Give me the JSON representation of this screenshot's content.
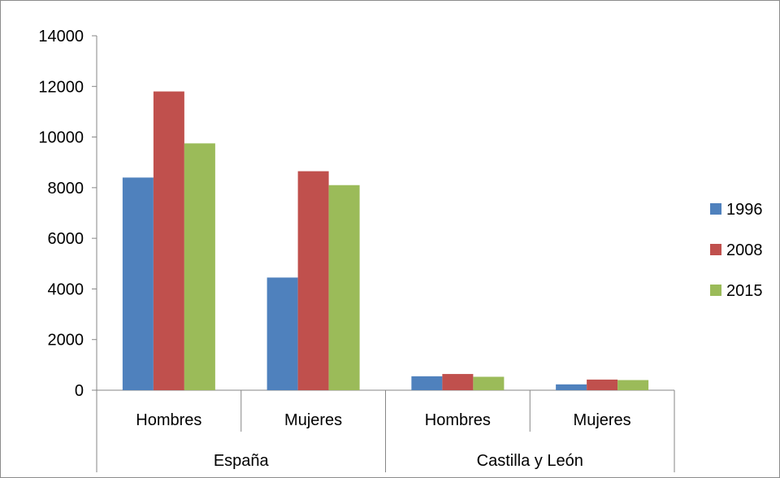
{
  "chart_data": {
    "type": "bar",
    "title": "",
    "xlabel": "",
    "ylabel": "",
    "ylim": [
      0,
      14000
    ],
    "yticks": [
      0,
      2000,
      4000,
      6000,
      8000,
      10000,
      12000,
      14000
    ],
    "grid": false,
    "legend_position": "right",
    "categories": [
      "Hombres",
      "Mujeres",
      "Hombres",
      "Mujeres"
    ],
    "groups": [
      {
        "label": "España",
        "categories": [
          "Hombres",
          "Mujeres"
        ]
      },
      {
        "label": "Castilla y León",
        "categories": [
          "Hombres",
          "Mujeres"
        ]
      }
    ],
    "series": [
      {
        "name": "1996",
        "color": "#4F81BD",
        "values": [
          8400,
          4450,
          550,
          230
        ]
      },
      {
        "name": "2008",
        "color": "#C0504D",
        "values": [
          11800,
          8650,
          640,
          420
        ]
      },
      {
        "name": "2015",
        "color": "#9BBB59",
        "values": [
          9750,
          8100,
          530,
          400
        ]
      }
    ]
  }
}
